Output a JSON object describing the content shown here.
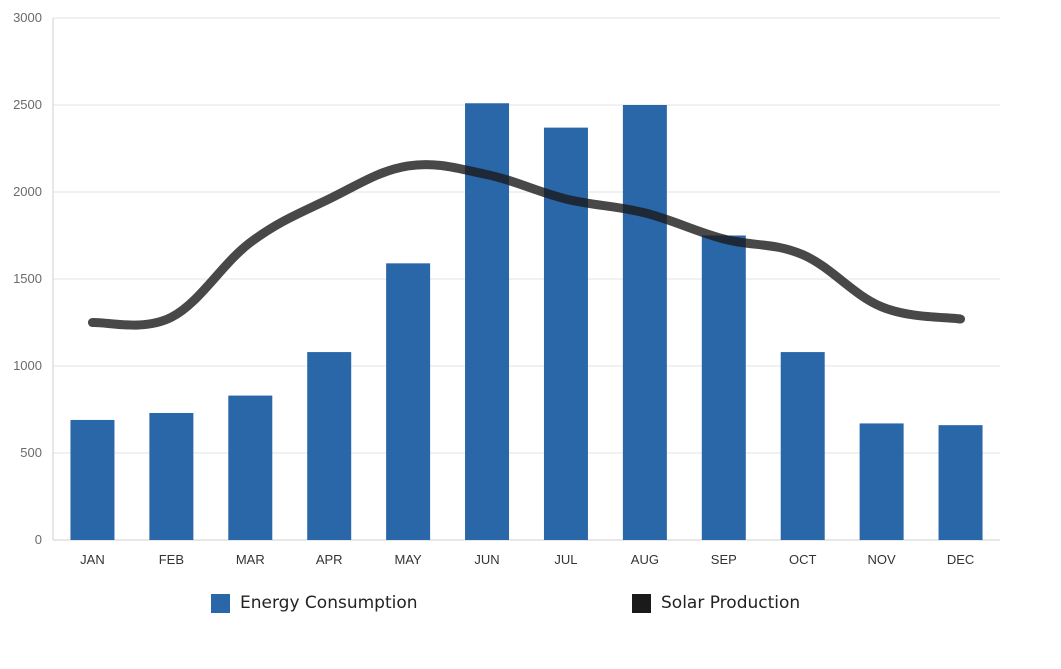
{
  "chart_data": {
    "type": "bar",
    "categories": [
      "JAN",
      "FEB",
      "MAR",
      "APR",
      "MAY",
      "JUN",
      "JUL",
      "AUG",
      "SEP",
      "OCT",
      "NOV",
      "DEC"
    ],
    "series": [
      {
        "name": "Energy Consumption",
        "type": "bar",
        "color": "#2a67a8",
        "values": [
          690,
          730,
          830,
          1080,
          1590,
          2510,
          2370,
          2500,
          1750,
          1080,
          670,
          660
        ]
      },
      {
        "name": "Solar Production",
        "type": "line",
        "color": "#1a1a1a",
        "values": [
          1250,
          1280,
          1710,
          1960,
          2150,
          2100,
          1960,
          1880,
          1730,
          1640,
          1340,
          1270
        ]
      }
    ],
    "ylim": [
      0,
      3000
    ],
    "yticks": [
      0,
      500,
      1000,
      1500,
      2000,
      2500,
      3000
    ],
    "grid": true,
    "legend_position": "bottom",
    "title": "",
    "xlabel": "",
    "ylabel": ""
  }
}
